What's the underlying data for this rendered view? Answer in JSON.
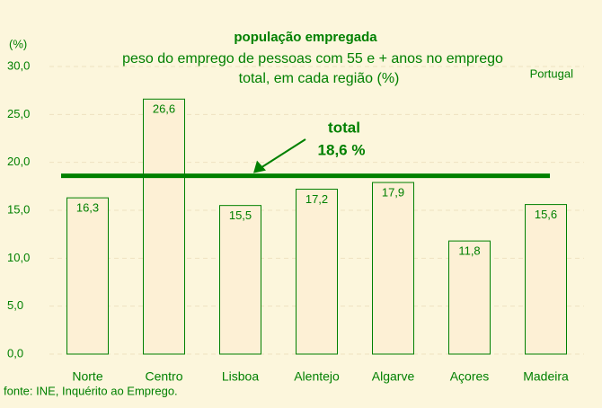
{
  "chart_data": {
    "type": "bar",
    "title": "população empregada",
    "subtitle": [
      "peso do emprego de  pessoas com 55 e + anos no emprego",
      "total, em cada região (%)"
    ],
    "y_label": "(%)",
    "region_note": "Portugal",
    "source": "fonte: INE, Inquérito ao Emprego.",
    "categories": [
      "Norte",
      "Centro",
      "Lisboa",
      "Alentejo",
      "Algarve",
      "Açores",
      "Madeira"
    ],
    "values": [
      16.3,
      26.6,
      15.5,
      17.2,
      17.9,
      11.8,
      15.6
    ],
    "value_labels": [
      "16,3",
      "26,6",
      "15,5",
      "17,2",
      "17,9",
      "11,8",
      "15,6"
    ],
    "color": "#fdf0d5",
    "edge_color": "#008000",
    "reference_line": {
      "label": "total",
      "value": 18.6,
      "value_label": "18,6 %",
      "color": "#008000"
    },
    "ylim": [
      0,
      30
    ],
    "yticks": [
      {
        "value": 0,
        "label": "0,0"
      },
      {
        "value": 5,
        "label": "5,0"
      },
      {
        "value": 10,
        "label": "10,0"
      },
      {
        "value": 15,
        "label": "15,0"
      },
      {
        "value": 20,
        "label": "20,0"
      },
      {
        "value": 25,
        "label": "25,0"
      },
      {
        "value": 30,
        "label": "30,0"
      }
    ],
    "grid": true
  }
}
